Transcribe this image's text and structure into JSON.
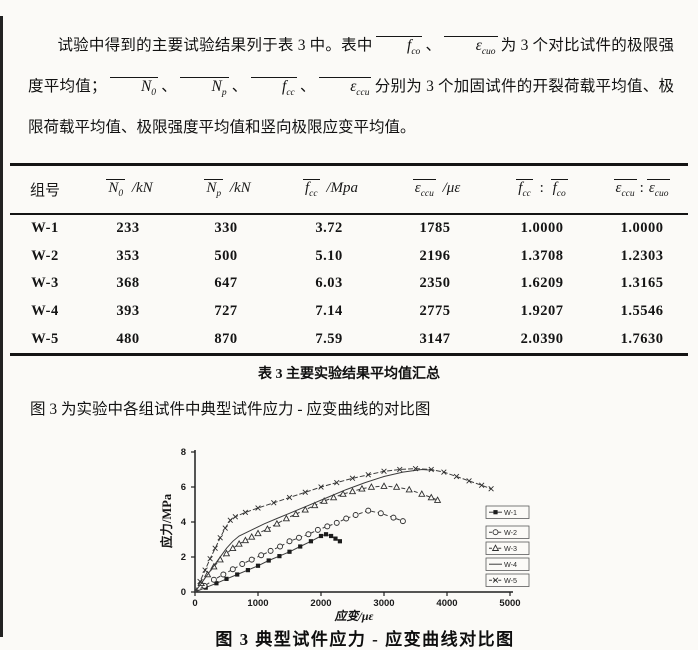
{
  "intro": {
    "segments": [
      {
        "t": "试验中得到的主要试验结果列于表 3 中。表中"
      },
      {
        "t": "f",
        "sub": "co",
        "ov": true,
        "it": true
      },
      {
        "t": "、"
      },
      {
        "t": "ε",
        "sub": "cuo",
        "ov": true,
        "it": true
      },
      {
        "t": "为 3 个对比试件的极限强度平均值；"
      },
      {
        "t": "N",
        "sub": "0",
        "ov": true,
        "it": true
      },
      {
        "t": "、"
      },
      {
        "t": "N",
        "sub": "p",
        "ov": true,
        "it": true
      },
      {
        "t": "、"
      },
      {
        "t": "f",
        "sub": "cc",
        "ov": true,
        "it": true
      },
      {
        "t": "、"
      },
      {
        "t": "ε",
        "sub": "ccu",
        "ov": true,
        "it": true
      },
      {
        "t": "分别为 3 个加固试件的开裂荷载平均值、极限荷载平均值、极限强度平均值和竖向极限应变平均值。"
      }
    ]
  },
  "table": {
    "caption": "表 3 主要实验结果平均值汇总",
    "col_headers": [
      [
        {
          "t": "组号"
        }
      ],
      [
        {
          "t": "N",
          "sub": "0",
          "ov": true,
          "it": true
        },
        {
          "t": " /kN",
          "it": true
        }
      ],
      [
        {
          "t": "N",
          "sub": "p",
          "ov": true,
          "it": true
        },
        {
          "t": " /kN",
          "it": true
        }
      ],
      [
        {
          "t": "f",
          "sub": "cc",
          "ov": true,
          "it": true
        },
        {
          "t": " /Mpa",
          "it": true
        }
      ],
      [
        {
          "t": "ε",
          "sub": "ccu",
          "ov": true,
          "it": true
        },
        {
          "t": " /με",
          "it": true
        }
      ],
      [
        {
          "t": "f",
          "sub": "cc",
          "ov": true,
          "it": true
        },
        {
          "t": " : "
        },
        {
          "t": "f",
          "sub": "co",
          "ov": true,
          "it": true
        }
      ],
      [
        {
          "t": "ε",
          "sub": "ccu",
          "ov": true,
          "it": true
        },
        {
          "t": ":"
        },
        {
          "t": "ε",
          "sub": "cuo",
          "ov": true,
          "it": true
        }
      ]
    ],
    "rows": [
      [
        "W-1",
        "233",
        "330",
        "3.72",
        "1785",
        "1.0000",
        "1.0000"
      ],
      [
        "W-2",
        "353",
        "500",
        "5.10",
        "2196",
        "1.3708",
        "1.2303"
      ],
      [
        "W-3",
        "368",
        "647",
        "6.03",
        "2350",
        "1.6209",
        "1.3165"
      ],
      [
        "W-4",
        "393",
        "727",
        "7.14",
        "2775",
        "1.9207",
        "1.5546"
      ],
      [
        "W-5",
        "480",
        "870",
        "7.59",
        "3147",
        "2.0390",
        "1.7630"
      ]
    ]
  },
  "figure_intro": "图 3 为实验中各组试件中典型试件应力 - 应变曲线的对比图",
  "chart_data": {
    "type": "line",
    "title": "图 3 典型试件应力 - 应变曲线对比图",
    "xlabel": "应变/με",
    "ylabel": "应力/MPa",
    "xlim": [
      0,
      5000
    ],
    "ylim": [
      0,
      8
    ],
    "xticks": [
      0,
      1000,
      2000,
      3000,
      4000,
      5000
    ],
    "yticks": [
      0,
      2,
      4,
      6,
      8
    ],
    "grid": false,
    "legend_position": "right-inside",
    "ink_color": "#3c3c3c",
    "series": [
      {
        "name": "W-1",
        "marker": "square-filled",
        "dash": "none",
        "points": [
          [
            0,
            0
          ],
          [
            170,
            0.25
          ],
          [
            340,
            0.5
          ],
          [
            500,
            0.75
          ],
          [
            670,
            1.0
          ],
          [
            840,
            1.25
          ],
          [
            1000,
            1.5
          ],
          [
            1170,
            1.8
          ],
          [
            1340,
            2.05
          ],
          [
            1500,
            2.3
          ],
          [
            1670,
            2.6
          ],
          [
            1840,
            2.9
          ],
          [
            2000,
            3.2
          ],
          [
            2080,
            3.3
          ],
          [
            2160,
            3.2
          ],
          [
            2230,
            3.05
          ],
          [
            2300,
            2.9
          ]
        ]
      },
      {
        "name": "W-2",
        "marker": "circle-open",
        "dash": "4 2.5",
        "points": [
          [
            0,
            0
          ],
          [
            150,
            0.35
          ],
          [
            300,
            0.7
          ],
          [
            450,
            1.0
          ],
          [
            600,
            1.3
          ],
          [
            750,
            1.6
          ],
          [
            900,
            1.85
          ],
          [
            1050,
            2.1
          ],
          [
            1200,
            2.35
          ],
          [
            1350,
            2.6
          ],
          [
            1500,
            2.9
          ],
          [
            1650,
            3.1
          ],
          [
            1800,
            3.3
          ],
          [
            1950,
            3.55
          ],
          [
            2100,
            3.75
          ],
          [
            2250,
            3.95
          ],
          [
            2400,
            4.2
          ],
          [
            2550,
            4.4
          ],
          [
            2750,
            4.65
          ],
          [
            2950,
            4.5
          ],
          [
            3150,
            4.25
          ],
          [
            3300,
            4.05
          ]
        ]
      },
      {
        "name": "W-3",
        "marker": "triangle-open",
        "dash": "4 2.5",
        "points": [
          [
            0,
            0
          ],
          [
            100,
            0.5
          ],
          [
            200,
            1.0
          ],
          [
            300,
            1.45
          ],
          [
            400,
            1.85
          ],
          [
            500,
            2.2
          ],
          [
            600,
            2.5
          ],
          [
            700,
            2.75
          ],
          [
            800,
            2.95
          ],
          [
            900,
            3.15
          ],
          [
            1000,
            3.35
          ],
          [
            1150,
            3.6
          ],
          [
            1300,
            3.9
          ],
          [
            1450,
            4.2
          ],
          [
            1600,
            4.45
          ],
          [
            1750,
            4.7
          ],
          [
            1900,
            4.95
          ],
          [
            2050,
            5.2
          ],
          [
            2200,
            5.4
          ],
          [
            2350,
            5.6
          ],
          [
            2500,
            5.75
          ],
          [
            2650,
            5.9
          ],
          [
            2800,
            6.0
          ],
          [
            3000,
            6.05
          ],
          [
            3200,
            6.0
          ],
          [
            3400,
            5.85
          ],
          [
            3600,
            5.6
          ],
          [
            3750,
            5.4
          ],
          [
            3850,
            5.25
          ]
        ]
      },
      {
        "name": "W-4",
        "marker": "none",
        "dash": "none",
        "points": [
          [
            0,
            0
          ],
          [
            120,
            0.6
          ],
          [
            250,
            1.25
          ],
          [
            380,
            1.9
          ],
          [
            500,
            2.5
          ],
          [
            600,
            2.9
          ],
          [
            700,
            3.2
          ],
          [
            900,
            3.55
          ],
          [
            1100,
            3.9
          ],
          [
            1300,
            4.2
          ],
          [
            1500,
            4.5
          ],
          [
            1800,
            4.95
          ],
          [
            2100,
            5.4
          ],
          [
            2400,
            5.85
          ],
          [
            2700,
            6.25
          ],
          [
            3000,
            6.6
          ],
          [
            3300,
            6.85
          ],
          [
            3600,
            7.0
          ],
          [
            3800,
            6.95
          ]
        ]
      },
      {
        "name": "W-5",
        "marker": "x",
        "dash": "5 2",
        "points": [
          [
            0,
            0
          ],
          [
            80,
            0.6
          ],
          [
            160,
            1.25
          ],
          [
            240,
            1.9
          ],
          [
            320,
            2.5
          ],
          [
            400,
            3.1
          ],
          [
            480,
            3.65
          ],
          [
            560,
            4.1
          ],
          [
            640,
            4.3
          ],
          [
            800,
            4.55
          ],
          [
            1000,
            4.8
          ],
          [
            1250,
            5.1
          ],
          [
            1500,
            5.4
          ],
          [
            1750,
            5.7
          ],
          [
            2000,
            6.0
          ],
          [
            2250,
            6.25
          ],
          [
            2500,
            6.5
          ],
          [
            2750,
            6.7
          ],
          [
            3000,
            6.9
          ],
          [
            3250,
            7.0
          ],
          [
            3500,
            7.05
          ],
          [
            3750,
            7.0
          ],
          [
            3950,
            6.85
          ],
          [
            4150,
            6.6
          ],
          [
            4350,
            6.35
          ],
          [
            4550,
            6.1
          ],
          [
            4700,
            5.9
          ]
        ]
      }
    ]
  }
}
